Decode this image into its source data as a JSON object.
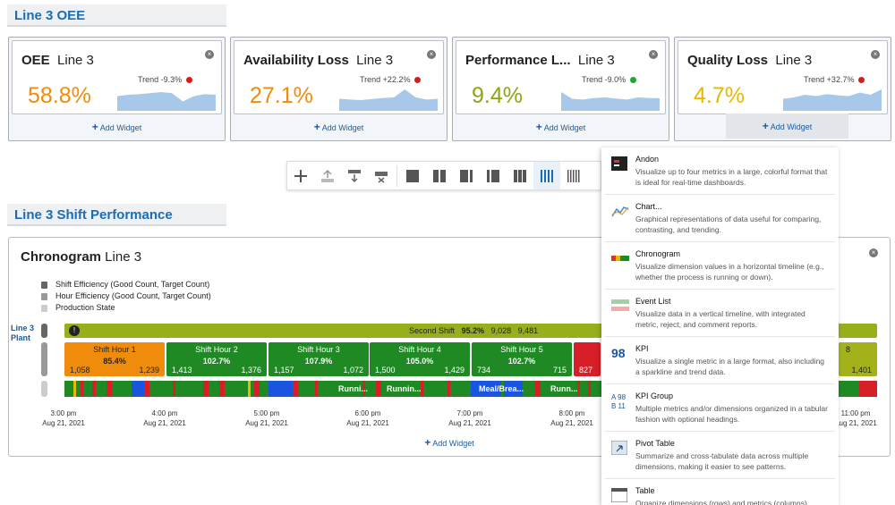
{
  "sections": {
    "oee_title": "Line 3 OEE",
    "shift_title": "Line 3 Shift Performance"
  },
  "kpis": [
    {
      "name": "OEE",
      "sub": "Line 3",
      "value": "58.8%",
      "trend": "Trend -9.3%",
      "value_color": "#f08c0c",
      "dot_color": "#d21e1e",
      "spark": [
        0.55,
        0.6,
        0.62,
        0.66,
        0.7,
        0.66,
        0.35,
        0.55,
        0.62,
        0.6
      ]
    },
    {
      "name": "Availability Loss",
      "sub": "Line 3",
      "value": "27.1%",
      "trend": "Trend +22.2%",
      "value_color": "#f08c0c",
      "dot_color": "#d21e1e",
      "spark": [
        0.45,
        0.42,
        0.4,
        0.44,
        0.48,
        0.5,
        0.8,
        0.5,
        0.42,
        0.45
      ]
    },
    {
      "name": "Performance L...",
      "sub": "Line 3",
      "value": "9.4%",
      "trend": "Trend -9.0%",
      "value_color": "#8aa614",
      "dot_color": "#22a33c",
      "spark": [
        0.7,
        0.45,
        0.42,
        0.48,
        0.5,
        0.46,
        0.42,
        0.5,
        0.48,
        0.47
      ]
    },
    {
      "name": "Quality Loss",
      "sub": "Line 3",
      "value": "4.7%",
      "trend": "Trend +32.7%",
      "value_color": "#e6b800",
      "dot_color": "#d21e1e",
      "spark": [
        0.45,
        0.5,
        0.6,
        0.55,
        0.62,
        0.58,
        0.55,
        0.68,
        0.6,
        0.8
      ]
    }
  ],
  "add_widget": "Add Widget",
  "toolbar": [
    "add",
    "upload",
    "insert-row",
    "delete-row",
    "layout-1",
    "layout-2",
    "layout-3",
    "layout-4",
    "layout-5",
    "layout-6",
    "layout-7"
  ],
  "chronogram": {
    "title": "Chronogram",
    "sub": "Line 3",
    "legend": [
      {
        "label": "Shift Efficiency (Good Count, Target Count)",
        "color": "#666"
      },
      {
        "label": "Hour Efficiency (Good Count, Target Count)",
        "color": "#999"
      },
      {
        "label": "Production State",
        "color": "#ccc"
      }
    ],
    "row_labels": [
      "Line 3",
      "Plant"
    ],
    "shift": {
      "label": "Second Shift",
      "pct": "95.2%",
      "good": "9,028",
      "target": "9,481"
    },
    "hours": [
      {
        "t": "Shift Hour 1",
        "p": "85.4%",
        "l": "1,058",
        "r": "1,239",
        "color": "#f08c0c",
        "text": "#222"
      },
      {
        "t": "Shift Hour 2",
        "p": "102.7%",
        "l": "1,413",
        "r": "1,376",
        "color": "#1f8a24",
        "text": "#fff"
      },
      {
        "t": "Shift Hour 3",
        "p": "107.9%",
        "l": "1,157",
        "r": "1,072",
        "color": "#1f8a24",
        "text": "#fff"
      },
      {
        "t": "Shift Hour 4",
        "p": "105.0%",
        "l": "1,500",
        "r": "1,429",
        "color": "#1f8a24",
        "text": "#fff"
      },
      {
        "t": "Shift Hour 5",
        "p": "102.7%",
        "l": "734",
        "r": "715",
        "color": "#1f8a24",
        "text": "#fff"
      },
      {
        "t": "",
        "p": "",
        "l": "827",
        "r": "",
        "color": "#d61f26",
        "text": "#fff"
      }
    ],
    "hour_last": {
      "t": "8",
      "r": "1,401",
      "color": "#a3b21a"
    },
    "state_labels": [
      "Runni...",
      "Runnin...",
      "Meal/Brea...",
      "Runn..."
    ],
    "ticks": [
      {
        "t": "3:00 pm",
        "d": "Aug 21, 2021"
      },
      {
        "t": "4:00 pm",
        "d": "Aug 21, 2021"
      },
      {
        "t": "5:00 pm",
        "d": "Aug 21, 2021"
      },
      {
        "t": "6:00 pm",
        "d": "Aug 21, 2021"
      },
      {
        "t": "7:00 pm",
        "d": "Aug 21, 2021"
      },
      {
        "t": "8:00 pm",
        "d": "Aug 21, 2021"
      },
      {
        "t": "11:00 pm",
        "d": "Aug 21, 2021"
      }
    ]
  },
  "menu": [
    {
      "title": "Andon",
      "desc": "Visualize up to four metrics in a large, colorful format that is ideal for real-time dashboards.",
      "icon": "andon-icon"
    },
    {
      "title": "Chart...",
      "desc": "Graphical representations of data useful for comparing, contrasting, and trending.",
      "icon": "chart-icon"
    },
    {
      "title": "Chronogram",
      "desc": "Visualize dimension values in a horizontal timeline (e.g., whether the process is running or down).",
      "icon": "chronogram-icon"
    },
    {
      "title": "Event List",
      "desc": "Visualize data in a vertical timeline, with integrated metric, reject, and comment reports.",
      "icon": "event-list-icon"
    },
    {
      "title": "KPI",
      "desc": "Visualize a single metric in a large format, also including a sparkline and trend data.",
      "icon": "kpi-icon",
      "badge": "98"
    },
    {
      "title": "KPI Group",
      "desc": "Multiple metrics and/or dimensions organized in a tabular fashion with optional headings.",
      "icon": "kpi-group-icon",
      "badge": "A 98\nB 11"
    },
    {
      "title": "Pivot Table",
      "desc": "Summarize and cross-tabulate data across multiple dimensions, making it easier to see patterns.",
      "icon": "pivot-table-icon"
    },
    {
      "title": "Table",
      "desc": "Organize dimensions (rows) and metrics (columns)",
      "icon": "table-icon"
    }
  ]
}
